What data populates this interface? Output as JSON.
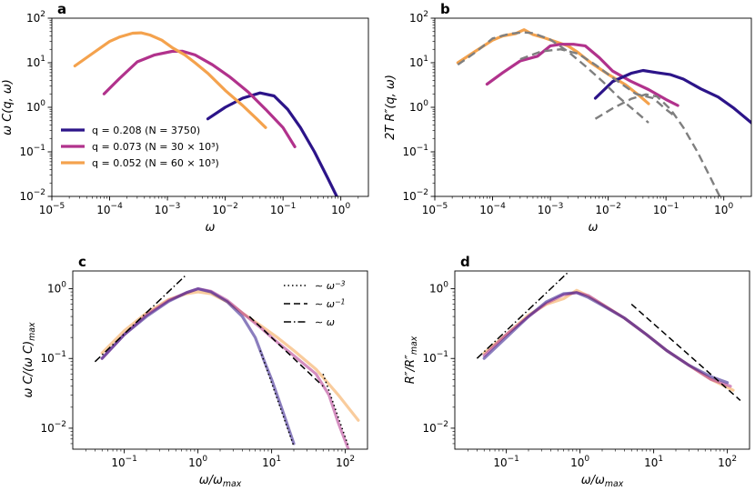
{
  "colors": {
    "q0208": "#2c1489",
    "q0073": "#b1328c",
    "q0052": "#f4a24d",
    "reference": "#7f7f7f",
    "powerlaw": "#000000"
  },
  "chart_data": [
    {
      "id": "a",
      "panel_label": "a",
      "type": "line",
      "xscale": "log",
      "yscale": "log",
      "xlim": [
        1e-05,
        3
      ],
      "ylim": [
        0.01,
        100
      ],
      "x_ticks": [
        {
          "value": 1e-05,
          "label": "10",
          "exp": "−5"
        },
        {
          "value": 0.0001,
          "label": "10",
          "exp": "−4"
        },
        {
          "value": 0.001,
          "label": "10",
          "exp": "−3"
        },
        {
          "value": 0.01,
          "label": "10",
          "exp": "−2"
        },
        {
          "value": 0.1,
          "label": "10",
          "exp": "−1"
        },
        {
          "value": 1,
          "label": "10",
          "exp": "0"
        }
      ],
      "y_ticks": [
        {
          "value": 0.01,
          "label": "10",
          "exp": "−2"
        },
        {
          "value": 0.1,
          "label": "10",
          "exp": "−1"
        },
        {
          "value": 1,
          "label": "10",
          "exp": "0"
        },
        {
          "value": 10,
          "label": "10",
          "exp": "1"
        },
        {
          "value": 100,
          "label": "10",
          "exp": "2"
        }
      ],
      "xlabel": "ω",
      "ylabel": "ω C(q, ω)",
      "legend": {
        "position": "lower-left",
        "entries": [
          {
            "text": "q = 0.208 (N = 3750)",
            "color": "q0208"
          },
          {
            "text": "q = 0.073 (N = 30 × 10³)",
            "color": "q0073"
          },
          {
            "text": "q = 0.052 (N = 60 × 10³)",
            "color": "q0052"
          }
        ]
      },
      "series": [
        {
          "name": "q = 0.208 (N = 3750)",
          "color": "q0208",
          "width": 3.2,
          "opacity": 1,
          "x": [
            0.005,
            0.01,
            0.02,
            0.04,
            0.07,
            0.12,
            0.2,
            0.35,
            0.6,
            0.85
          ],
          "y": [
            0.55,
            1.0,
            1.6,
            2.1,
            1.8,
            0.9,
            0.35,
            0.1,
            0.025,
            0.01
          ]
        },
        {
          "name": "q = 0.073 (N = 30 × 10³)",
          "color": "q0073",
          "width": 3.2,
          "opacity": 1,
          "x": [
            8e-05,
            0.00015,
            0.0003,
            0.0006,
            0.0012,
            0.0018,
            0.003,
            0.006,
            0.012,
            0.025,
            0.05,
            0.1,
            0.16
          ],
          "y": [
            2.0,
            4.5,
            10.5,
            15,
            18,
            18.2,
            15,
            9,
            4.8,
            2.2,
            0.9,
            0.35,
            0.13
          ]
        },
        {
          "name": "q = 0.052 (N = 60 × 10³)",
          "color": "q0052",
          "width": 3.2,
          "opacity": 1,
          "x": [
            2.5e-05,
            5e-05,
            0.0001,
            0.00015,
            0.00025,
            0.00035,
            0.0005,
            0.0008,
            0.0012,
            0.002,
            0.003,
            0.005,
            0.01,
            0.02,
            0.035,
            0.05
          ],
          "y": [
            8.5,
            16,
            30,
            38,
            46,
            47,
            42,
            32,
            22,
            15,
            10,
            5.8,
            2.4,
            1.1,
            0.55,
            0.35
          ]
        }
      ]
    },
    {
      "id": "b",
      "panel_label": "b",
      "type": "line",
      "xscale": "log",
      "yscale": "log",
      "xlim": [
        1e-05,
        3
      ],
      "ylim": [
        0.01,
        100
      ],
      "x_ticks": [
        {
          "value": 1e-05,
          "label": "10",
          "exp": "−5"
        },
        {
          "value": 0.0001,
          "label": "10",
          "exp": "−4"
        },
        {
          "value": 0.001,
          "label": "10",
          "exp": "−3"
        },
        {
          "value": 0.01,
          "label": "10",
          "exp": "−2"
        },
        {
          "value": 0.1,
          "label": "10",
          "exp": "−1"
        },
        {
          "value": 1,
          "label": "10",
          "exp": "0"
        }
      ],
      "y_ticks": [
        {
          "value": 0.01,
          "label": "10",
          "exp": "−2"
        },
        {
          "value": 0.1,
          "label": "10",
          "exp": "−1"
        },
        {
          "value": 1,
          "label": "10",
          "exp": "0"
        },
        {
          "value": 10,
          "label": "10",
          "exp": "1"
        },
        {
          "value": 100,
          "label": "10",
          "exp": "2"
        }
      ],
      "xlabel": "ω",
      "ylabel": "2T R″(q, ω)",
      "series": [
        {
          "name": "q = 0.052 (N = 60 × 10³)",
          "color": "q0052",
          "width": 3.2,
          "opacity": 1,
          "x": [
            2.5e-05,
            5e-05,
            0.0001,
            0.00015,
            0.00025,
            0.00035,
            0.0005,
            0.0008,
            0.0012,
            0.002,
            0.003,
            0.005,
            0.01,
            0.02,
            0.035,
            0.05
          ],
          "y": [
            10,
            18,
            32,
            40,
            45,
            55,
            43,
            36,
            30,
            24,
            17,
            10,
            5.5,
            3.2,
            1.8,
            1.2
          ]
        },
        {
          "name": "q = 0.073 (N = 30 × 10³)",
          "color": "q0073",
          "width": 3.2,
          "opacity": 1,
          "x": [
            8e-05,
            0.00015,
            0.0003,
            0.0006,
            0.001,
            0.0015,
            0.0025,
            0.004,
            0.007,
            0.012,
            0.025,
            0.05,
            0.1,
            0.16
          ],
          "y": [
            3.3,
            6,
            11,
            14,
            24,
            26,
            26,
            24,
            13,
            6.5,
            3.8,
            2.5,
            1.5,
            1.1
          ]
        },
        {
          "name": "q = 0.208 (N = 3750)",
          "color": "q0208",
          "width": 3.2,
          "opacity": 1,
          "x": [
            0.006,
            0.012,
            0.025,
            0.04,
            0.07,
            0.12,
            0.2,
            0.4,
            0.8,
            1.5,
            3
          ],
          "y": [
            1.6,
            3.8,
            5.8,
            6.7,
            6.0,
            5.4,
            4.3,
            2.6,
            1.7,
            0.95,
            0.45
          ]
        },
        {
          "name": "reference q = 0.052",
          "color": "reference",
          "width": 2.4,
          "opacity": 1,
          "dash": "9,5",
          "x": [
            2.5e-05,
            5e-05,
            0.0001,
            0.0002,
            0.00035,
            0.0005,
            0.001,
            0.002,
            0.004,
            0.008,
            0.015,
            0.03,
            0.05
          ],
          "y": [
            9,
            17,
            35,
            45,
            48,
            46,
            33,
            18,
            8.5,
            3.8,
            1.7,
            0.8,
            0.45
          ]
        },
        {
          "name": "reference q = 0.073",
          "color": "reference",
          "width": 2.4,
          "opacity": 1,
          "dash": "9,5",
          "x": [
            0.0003,
            0.0007,
            0.0015,
            0.003,
            0.006,
            0.012,
            0.03,
            0.06,
            0.1,
            0.15
          ],
          "y": [
            12,
            18,
            20,
            16,
            9,
            4.6,
            2.0,
            1.6,
            0.9,
            0.6
          ]
        },
        {
          "name": "reference q = 0.208",
          "color": "reference",
          "width": 2.4,
          "opacity": 1,
          "dash": "9,5",
          "x": [
            0.006,
            0.012,
            0.025,
            0.045,
            0.07,
            0.12,
            0.2,
            0.35,
            0.6,
            0.85
          ],
          "y": [
            0.55,
            0.95,
            1.55,
            1.95,
            1.75,
            0.9,
            0.35,
            0.1,
            0.025,
            0.01
          ]
        }
      ]
    },
    {
      "id": "c",
      "panel_label": "c",
      "type": "line",
      "xscale": "log",
      "yscale": "log",
      "xlim": [
        0.02,
        200
      ],
      "ylim": [
        0.005,
        1.8
      ],
      "x_ticks": [
        {
          "value": 0.1,
          "label": "10",
          "exp": "−1"
        },
        {
          "value": 1,
          "label": "10",
          "exp": "0"
        },
        {
          "value": 10,
          "label": "10",
          "exp": "1"
        },
        {
          "value": 100,
          "label": "10",
          "exp": "2"
        }
      ],
      "y_ticks": [
        {
          "value": 0.01,
          "label": "10",
          "exp": "−2"
        },
        {
          "value": 0.1,
          "label": "10",
          "exp": "−1"
        },
        {
          "value": 1,
          "label": "10",
          "exp": "0"
        }
      ],
      "xlabel": "ω/ω_max",
      "ylabel": "ω C/(ω C)_max",
      "legend": {
        "position": "top-right",
        "entries": [
          {
            "text": "∼ ω^−3",
            "style": "dotted"
          },
          {
            "text": "∼ ω^−1",
            "style": "dashed"
          },
          {
            "text": "∼ ω",
            "style": "dashdot"
          }
        ]
      },
      "series": [
        {
          "name": "q = 0.052",
          "color": "q0052",
          "width": 3.2,
          "opacity": 0.55,
          "x": [
            0.05,
            0.1,
            0.2,
            0.4,
            0.7,
            1,
            1.5,
            2.5,
            4,
            7,
            12,
            20,
            40,
            80,
            150
          ],
          "y": [
            0.12,
            0.25,
            0.45,
            0.7,
            0.85,
            0.9,
            0.85,
            0.65,
            0.45,
            0.3,
            0.2,
            0.13,
            0.07,
            0.03,
            0.013
          ]
        },
        {
          "name": "q = 0.073",
          "color": "q0073",
          "width": 3.2,
          "opacity": 0.55,
          "x": [
            0.05,
            0.1,
            0.2,
            0.4,
            0.7,
            1,
            1.5,
            2.5,
            4,
            7,
            12,
            20,
            40,
            60,
            80,
            110
          ],
          "y": [
            0.1,
            0.22,
            0.42,
            0.68,
            0.88,
            1.0,
            0.92,
            0.68,
            0.45,
            0.28,
            0.17,
            0.11,
            0.06,
            0.03,
            0.012,
            0.005
          ]
        },
        {
          "name": "q = 0.208",
          "color": "q0208",
          "width": 3.2,
          "opacity": 0.55,
          "x": [
            0.05,
            0.1,
            0.2,
            0.4,
            0.7,
            1,
            1.5,
            2.5,
            4,
            6,
            8,
            10,
            14,
            20
          ],
          "y": [
            0.1,
            0.22,
            0.4,
            0.66,
            0.88,
            1.0,
            0.9,
            0.65,
            0.4,
            0.2,
            0.09,
            0.05,
            0.018,
            0.006
          ]
        }
      ],
      "reference_lines": [
        {
          "style": "dashdot",
          "x": [
            0.04,
            0.7
          ],
          "y": [
            0.09,
            1.6
          ]
        },
        {
          "style": "dashed",
          "x": [
            5,
            50
          ],
          "y": [
            0.4,
            0.04
          ]
        },
        {
          "style": "dotted",
          "x": [
            7,
            20
          ],
          "y": [
            0.13,
            0.0055
          ]
        },
        {
          "style": "dotted",
          "x": [
            50,
            110
          ],
          "y": [
            0.06,
            0.0055
          ]
        }
      ]
    },
    {
      "id": "d",
      "panel_label": "d",
      "type": "line",
      "xscale": "log",
      "yscale": "log",
      "xlim": [
        0.02,
        200
      ],
      "ylim": [
        0.005,
        1.8
      ],
      "x_ticks": [
        {
          "value": 0.1,
          "label": "10",
          "exp": "−1"
        },
        {
          "value": 1,
          "label": "10",
          "exp": "0"
        },
        {
          "value": 10,
          "label": "10",
          "exp": "1"
        },
        {
          "value": 100,
          "label": "10",
          "exp": "2"
        }
      ],
      "y_ticks": [
        {
          "value": 0.01,
          "label": "10",
          "exp": "−2"
        },
        {
          "value": 0.1,
          "label": "10",
          "exp": "−1"
        },
        {
          "value": 1,
          "label": "10",
          "exp": "0"
        }
      ],
      "xlabel": "ω/ω_max",
      "ylabel": "R″/R″_max",
      "series": [
        {
          "name": "q = 0.052",
          "color": "q0052",
          "width": 3.2,
          "opacity": 0.55,
          "x": [
            0.05,
            0.1,
            0.2,
            0.35,
            0.6,
            0.9,
            1.2,
            2,
            4,
            8,
            15,
            30,
            60,
            120
          ],
          "y": [
            0.12,
            0.22,
            0.42,
            0.6,
            0.72,
            0.95,
            0.82,
            0.6,
            0.38,
            0.22,
            0.13,
            0.08,
            0.05,
            0.035
          ]
        },
        {
          "name": "q = 0.073",
          "color": "q0073",
          "width": 3.2,
          "opacity": 0.55,
          "x": [
            0.05,
            0.1,
            0.2,
            0.35,
            0.6,
            0.9,
            1.3,
            2,
            4,
            8,
            15,
            30,
            60,
            110
          ],
          "y": [
            0.11,
            0.22,
            0.4,
            0.62,
            0.82,
            0.88,
            0.8,
            0.6,
            0.38,
            0.22,
            0.13,
            0.08,
            0.05,
            0.04
          ]
        },
        {
          "name": "q = 0.208",
          "color": "q0208",
          "width": 3.2,
          "opacity": 0.55,
          "x": [
            0.05,
            0.1,
            0.2,
            0.35,
            0.6,
            0.9,
            1.3,
            2,
            4,
            8,
            15,
            30,
            60,
            100
          ],
          "y": [
            0.1,
            0.2,
            0.4,
            0.65,
            0.85,
            0.88,
            0.75,
            0.58,
            0.38,
            0.22,
            0.13,
            0.08,
            0.055,
            0.045
          ]
        }
      ],
      "reference_lines": [
        {
          "style": "dashdot",
          "x": [
            0.04,
            0.7
          ],
          "y": [
            0.1,
            1.75
          ]
        },
        {
          "style": "dashed",
          "x": [
            5,
            150
          ],
          "y": [
            0.6,
            0.025
          ]
        }
      ]
    }
  ]
}
